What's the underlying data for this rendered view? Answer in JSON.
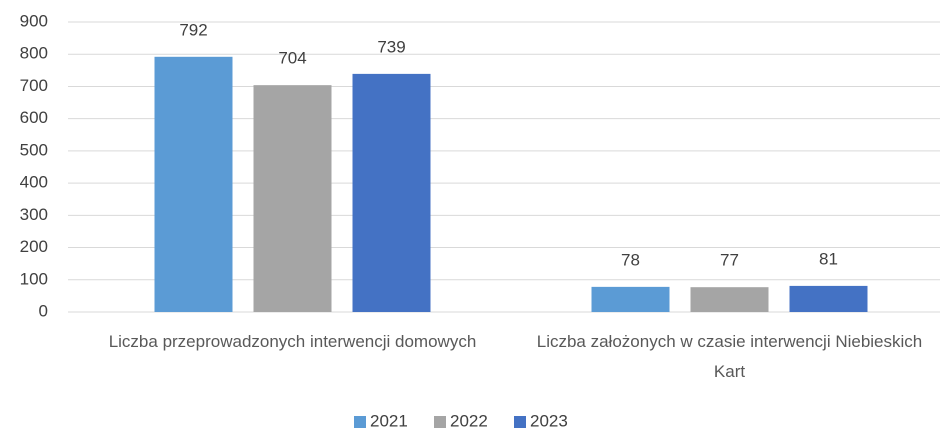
{
  "chart_data": {
    "type": "bar",
    "categories": [
      "Liczba przeprowadzonych interwencji domowych",
      "Liczba założonych w czasie interwencji Niebieskich Kart"
    ],
    "series": [
      {
        "name": "2021",
        "color": "#5b9bd5",
        "values": [
          792,
          78
        ]
      },
      {
        "name": "2022",
        "color": "#a5a5a5",
        "values": [
          704,
          77
        ]
      },
      {
        "name": "2023",
        "color": "#4472c4",
        "values": [
          739,
          81
        ]
      }
    ],
    "ylim": [
      0,
      900
    ],
    "yticks": [
      0,
      100,
      200,
      300,
      400,
      500,
      600,
      700,
      800,
      900
    ],
    "grid": true,
    "legend": "bottom"
  }
}
